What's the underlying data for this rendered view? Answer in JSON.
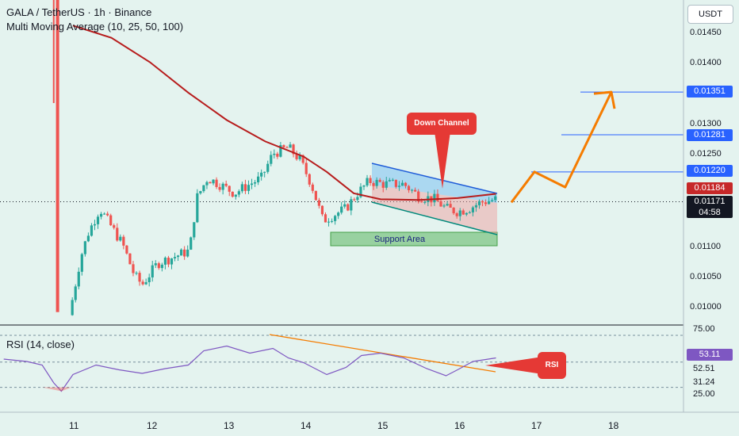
{
  "header": {
    "symbol_line": "GALA / TetherUS · 1h · Binance",
    "indicator_line": "Multi Moving Average (10, 25, 50, 100)",
    "currency": "USDT"
  },
  "price_scale": {
    "ticks": [
      "0.01450",
      "0.01400",
      "0.01300",
      "0.01250",
      "0.01100",
      "0.01050",
      "0.01000"
    ],
    "levels": [
      {
        "label": "0.01351",
        "color": "#2962ff"
      },
      {
        "label": "0.01281",
        "color": "#2962ff"
      },
      {
        "label": "0.01220",
        "color": "#2962ff"
      },
      {
        "label": "0.01184",
        "color": "#c62828"
      },
      {
        "label": "0.01171",
        "color": "#131722"
      }
    ],
    "countdown": "04:58"
  },
  "time_axis": {
    "ticks": [
      "11",
      "12",
      "13",
      "14",
      "15",
      "16",
      "17",
      "18"
    ]
  },
  "annotations": {
    "down_channel": "Down Channel",
    "support_area": "Support Area",
    "rsi_callout": "RSI"
  },
  "rsi_panel": {
    "title": "RSI (14, close)",
    "scale": [
      "75.00",
      "53.11",
      "52.51",
      "31.24",
      "25.00"
    ],
    "current_color": "#7e57c2"
  },
  "chart_data": [
    {
      "type": "candlestick",
      "title": "GALA / TetherUS · 1h · Binance",
      "ylabel": "USDT",
      "x_ticks": [
        "11",
        "12",
        "13",
        "14",
        "15",
        "16",
        "17",
        "18"
      ],
      "ylim": [
        0.0098,
        0.0148
      ],
      "close_path": [
        {
          "x": 10.95,
          "y": 0.00985
        },
        {
          "x": 11.0,
          "y": 0.01015
        },
        {
          "x": 11.1,
          "y": 0.0108
        },
        {
          "x": 11.2,
          "y": 0.0112
        },
        {
          "x": 11.35,
          "y": 0.0116
        },
        {
          "x": 11.5,
          "y": 0.0113
        },
        {
          "x": 11.65,
          "y": 0.011
        },
        {
          "x": 11.8,
          "y": 0.0105
        },
        {
          "x": 11.9,
          "y": 0.01035
        },
        {
          "x": 12.1,
          "y": 0.0107
        },
        {
          "x": 12.3,
          "y": 0.0108
        },
        {
          "x": 12.5,
          "y": 0.0109
        },
        {
          "x": 12.55,
          "y": 0.01115
        },
        {
          "x": 12.6,
          "y": 0.01175
        },
        {
          "x": 12.75,
          "y": 0.0121
        },
        {
          "x": 12.9,
          "y": 0.012
        },
        {
          "x": 13.1,
          "y": 0.01185
        },
        {
          "x": 13.3,
          "y": 0.012
        },
        {
          "x": 13.45,
          "y": 0.0121
        },
        {
          "x": 13.6,
          "y": 0.0125
        },
        {
          "x": 13.8,
          "y": 0.0126
        },
        {
          "x": 13.95,
          "y": 0.0124
        },
        {
          "x": 14.1,
          "y": 0.012
        },
        {
          "x": 14.25,
          "y": 0.0114
        },
        {
          "x": 14.4,
          "y": 0.0115
        },
        {
          "x": 14.55,
          "y": 0.0116
        },
        {
          "x": 14.7,
          "y": 0.01185
        },
        {
          "x": 14.85,
          "y": 0.01205
        },
        {
          "x": 15.05,
          "y": 0.012
        },
        {
          "x": 15.3,
          "y": 0.012
        },
        {
          "x": 15.5,
          "y": 0.0118
        },
        {
          "x": 15.7,
          "y": 0.01175
        },
        {
          "x": 15.85,
          "y": 0.0116
        },
        {
          "x": 16.0,
          "y": 0.01155
        },
        {
          "x": 16.15,
          "y": 0.0116
        },
        {
          "x": 16.3,
          "y": 0.0117
        },
        {
          "x": 16.5,
          "y": 0.01175
        }
      ],
      "series": [
        {
          "name": "Multi Moving Average",
          "color": "#b71c1c",
          "points": [
            {
              "x": 11.0,
              "y": 0.0146
            },
            {
              "x": 11.5,
              "y": 0.0144
            },
            {
              "x": 12.0,
              "y": 0.014
            },
            {
              "x": 12.5,
              "y": 0.0135
            },
            {
              "x": 13.0,
              "y": 0.01305
            },
            {
              "x": 13.5,
              "y": 0.0127
            },
            {
              "x": 14.0,
              "y": 0.01245
            },
            {
              "x": 14.3,
              "y": 0.0122
            },
            {
              "x": 14.65,
              "y": 0.01185
            },
            {
              "x": 15.0,
              "y": 0.01175
            },
            {
              "x": 15.5,
              "y": 0.01174
            },
            {
              "x": 16.0,
              "y": 0.01177
            },
            {
              "x": 16.5,
              "y": 0.01184
            }
          ]
        }
      ],
      "horizontal_levels": [
        0.01351,
        0.01281,
        0.0122,
        0.01184,
        0.01171
      ],
      "channel": {
        "upper": [
          [
            14.85,
            0.01225
          ],
          [
            16.55,
            0.01186
          ]
        ],
        "lower": [
          [
            14.85,
            0.01182
          ],
          [
            16.55,
            0.0113
          ]
        ]
      },
      "support_area": {
        "x": [
          14.35,
          16.5
        ],
        "y": [
          0.01102,
          0.01125
        ]
      },
      "projection": [
        {
          "x": 16.7,
          "y": 0.0117
        },
        {
          "x": 17.0,
          "y": 0.0122
        },
        {
          "x": 17.4,
          "y": 0.01195
        },
        {
          "x": 18.0,
          "y": 0.01351
        }
      ]
    },
    {
      "type": "line",
      "title": "RSI (14, close)",
      "ylim": [
        25,
        80
      ],
      "bands": [
        31.24,
        52.51,
        75.0
      ],
      "series": [
        {
          "name": "RSI (14, close)",
          "color": "#7e57c2",
          "points": [
            {
              "x": 10.1,
              "y": 55
            },
            {
              "x": 10.4,
              "y": 53
            },
            {
              "x": 10.6,
              "y": 50
            },
            {
              "x": 10.75,
              "y": 35
            },
            {
              "x": 10.85,
              "y": 28
            },
            {
              "x": 11.0,
              "y": 42
            },
            {
              "x": 11.3,
              "y": 50
            },
            {
              "x": 11.6,
              "y": 46
            },
            {
              "x": 11.9,
              "y": 43
            },
            {
              "x": 12.2,
              "y": 47
            },
            {
              "x": 12.5,
              "y": 50
            },
            {
              "x": 12.7,
              "y": 62
            },
            {
              "x": 13.0,
              "y": 66
            },
            {
              "x": 13.3,
              "y": 60
            },
            {
              "x": 13.6,
              "y": 64
            },
            {
              "x": 13.8,
              "y": 56
            },
            {
              "x": 14.0,
              "y": 52
            },
            {
              "x": 14.3,
              "y": 42
            },
            {
              "x": 14.55,
              "y": 48
            },
            {
              "x": 14.75,
              "y": 58
            },
            {
              "x": 15.0,
              "y": 60
            },
            {
              "x": 15.3,
              "y": 56
            },
            {
              "x": 15.6,
              "y": 47
            },
            {
              "x": 15.85,
              "y": 41
            },
            {
              "x": 16.0,
              "y": 46
            },
            {
              "x": 16.2,
              "y": 53
            },
            {
              "x": 16.5,
              "y": 56
            }
          ]
        }
      ]
    }
  ]
}
